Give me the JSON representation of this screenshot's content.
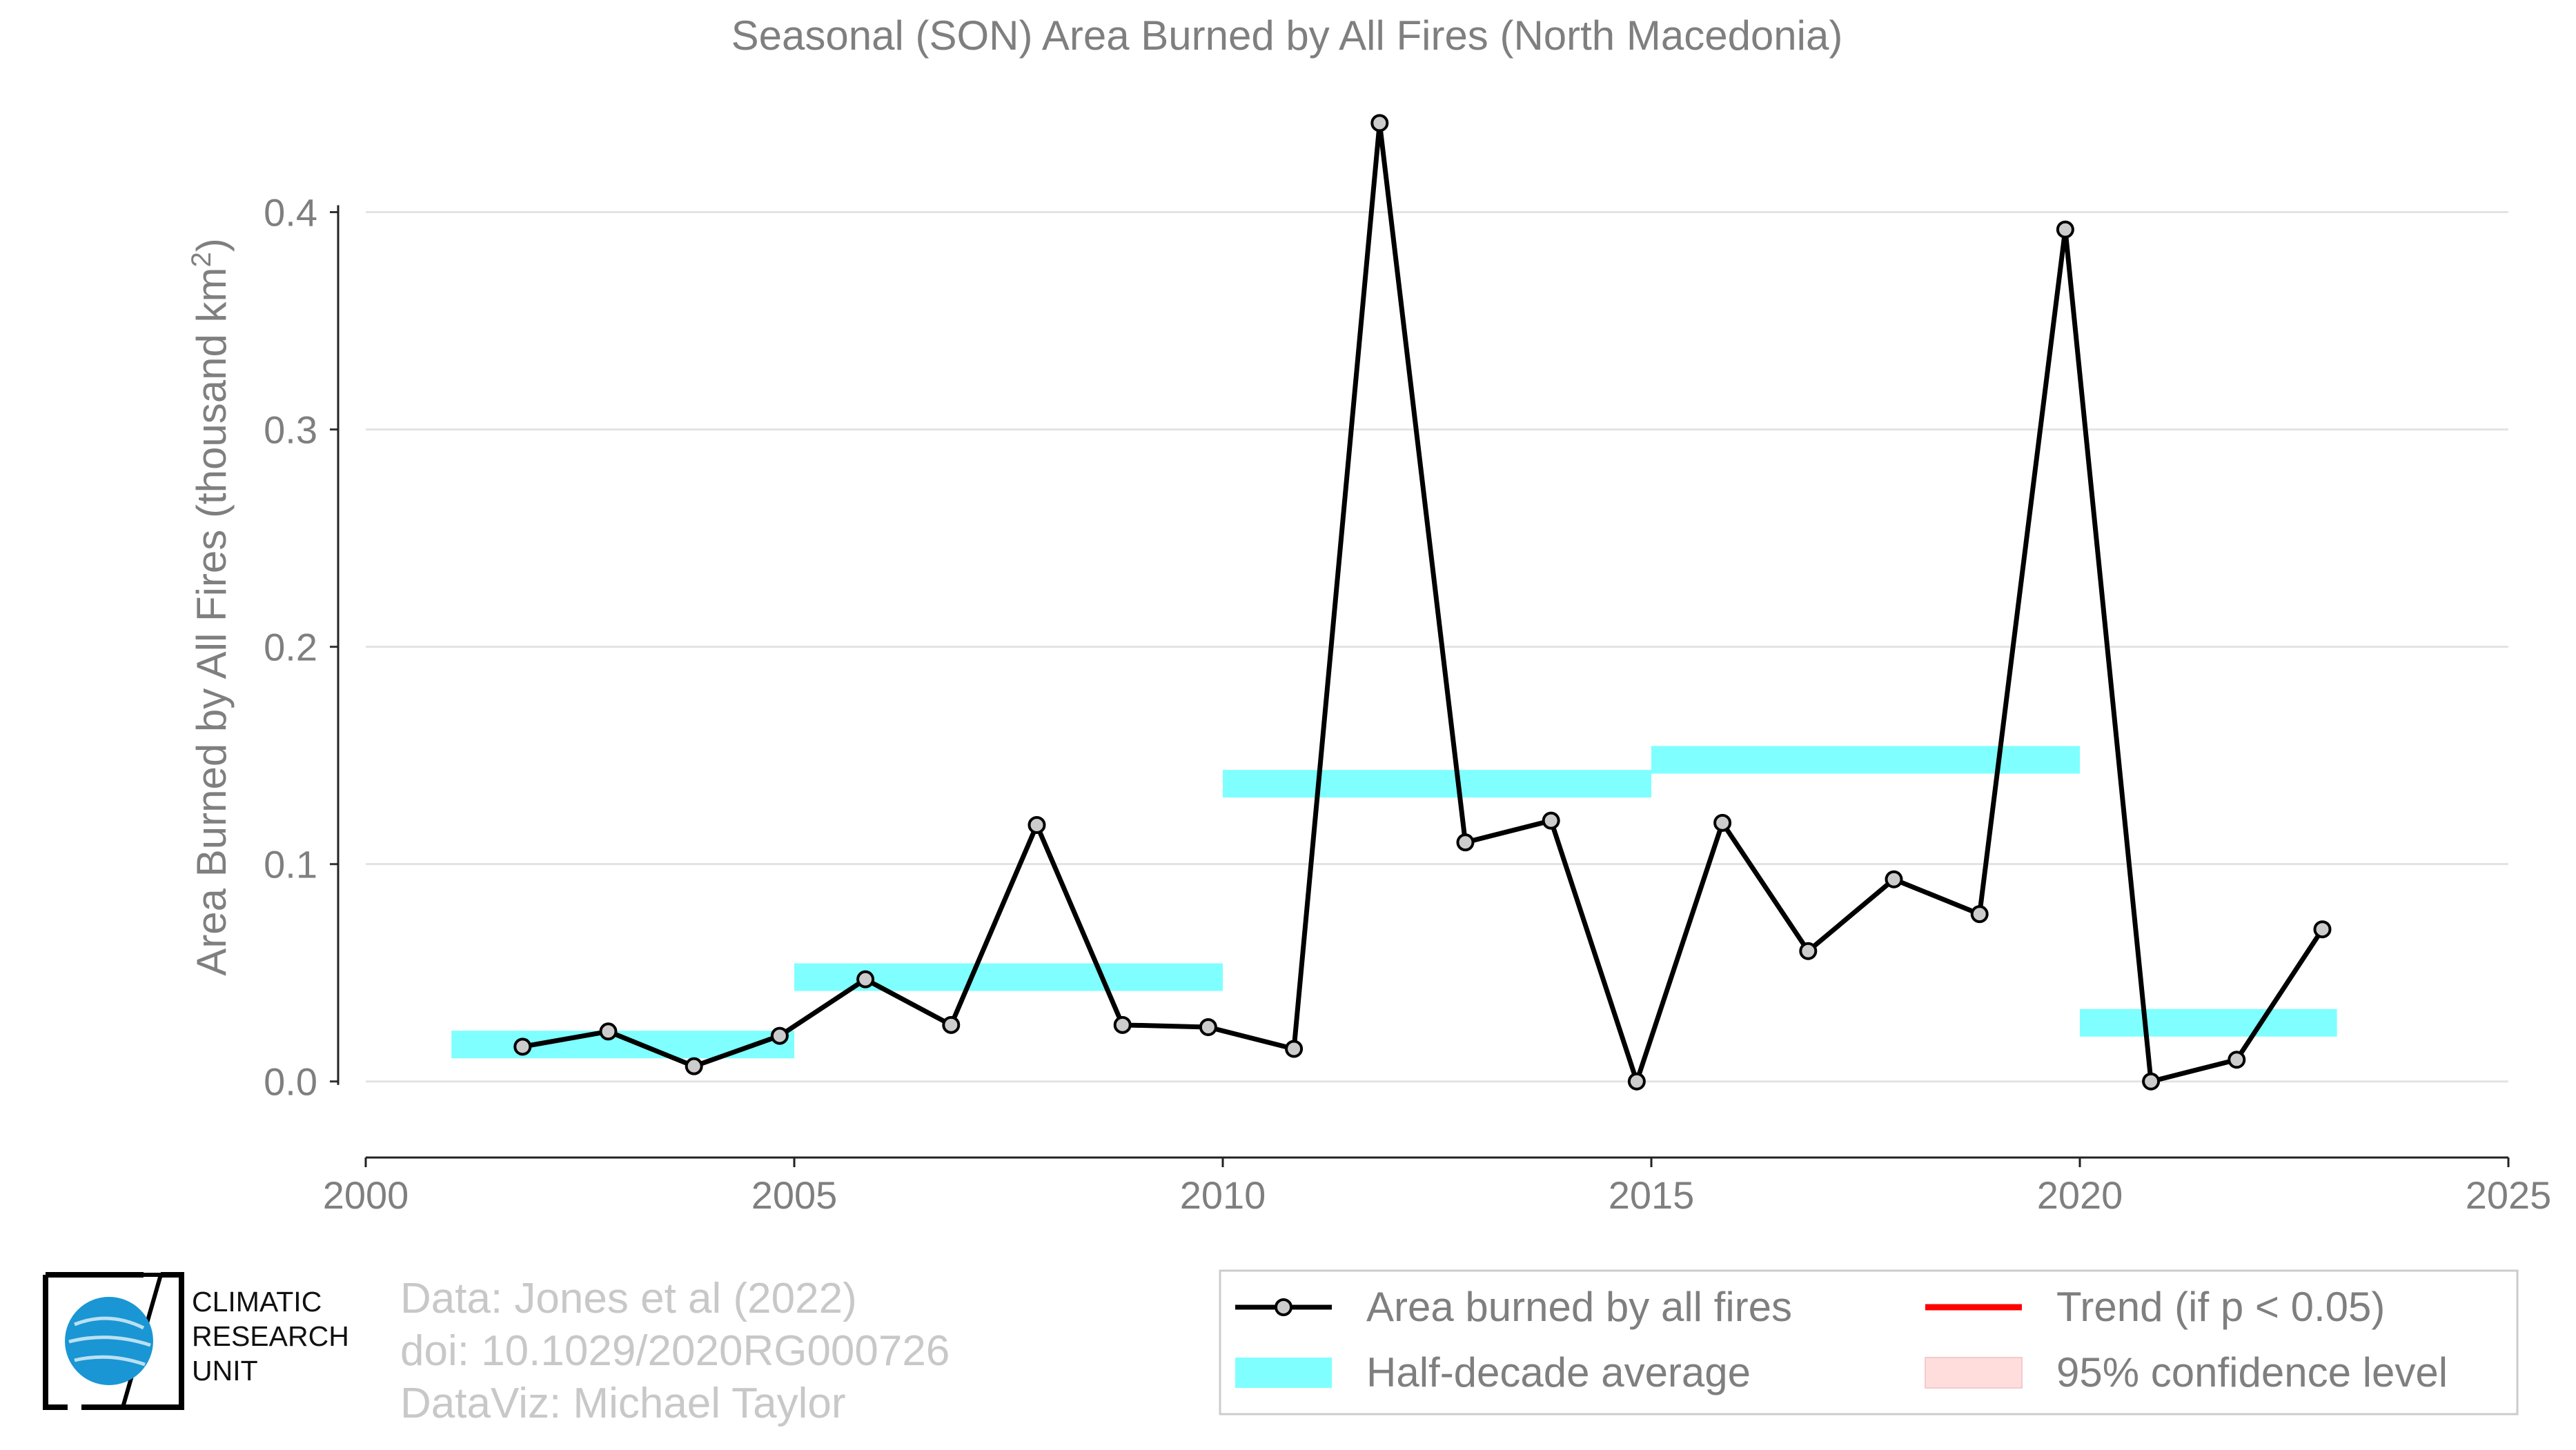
{
  "chart_data": {
    "type": "line",
    "title": "Seasonal (SON) Area Burned by All Fires (North Macedonia)",
    "ylabel": "Area Burned by All Fires (thousand km²)",
    "xlabel": "",
    "xlim": [
      2000,
      2025
    ],
    "ylim": [
      -0.035,
      0.45
    ],
    "xticks": [
      "2000",
      "2005",
      "2010",
      "2015",
      "2020",
      "2025"
    ],
    "yticks": [
      "0.0",
      "0.1",
      "0.2",
      "0.3",
      "0.4"
    ],
    "grid": "horizontal",
    "series": [
      {
        "name": "Area burned by all fires",
        "color": "#000000",
        "x": [
          2001.83,
          2002.83,
          2003.83,
          2004.83,
          2005.83,
          2006.83,
          2007.83,
          2008.83,
          2009.83,
          2010.83,
          2011.83,
          2012.83,
          2013.83,
          2014.83,
          2015.83,
          2016.83,
          2017.83,
          2018.83,
          2019.83,
          2020.83,
          2021.83,
          2022.83
        ],
        "y": [
          0.016,
          0.023,
          0.007,
          0.021,
          0.047,
          0.026,
          0.118,
          0.026,
          0.025,
          0.015,
          0.441,
          0.11,
          0.12,
          0.0,
          0.119,
          0.06,
          0.093,
          0.077,
          0.392,
          0.0,
          0.01,
          0.07
        ]
      }
    ],
    "half_decade_average": {
      "name": "Half-decade average",
      "color": "#7fffff",
      "segments": [
        {
          "x0": 2001,
          "x1": 2005,
          "y": 0.017
        },
        {
          "x0": 2005,
          "x1": 2010,
          "y": 0.048
        },
        {
          "x0": 2010,
          "x1": 2015,
          "y": 0.137
        },
        {
          "x0": 2015,
          "x1": 2020,
          "y": 0.148
        },
        {
          "x0": 2020,
          "x1": 2023,
          "y": 0.027
        }
      ]
    },
    "legend": {
      "placement": "bottom-right",
      "entries": [
        {
          "label": "Area burned by all fires",
          "kind": "line-marker",
          "color": "#000000"
        },
        {
          "label": "Trend (if p < 0.05)",
          "kind": "line",
          "color": "#ff0000"
        },
        {
          "label": "Half-decade average",
          "kind": "band",
          "color": "#7fffff"
        },
        {
          "label": "95% confidence level",
          "kind": "band",
          "color": "#ffdddd"
        }
      ]
    }
  },
  "credits": {
    "line1": "Data: Jones et al (2022)",
    "line2": "doi: 10.1029/2020RG000726",
    "line3": "DataViz: Michael Taylor"
  },
  "logo": {
    "line1": "CLIMATIC",
    "line2": "RESEARCH",
    "line3": "UNIT",
    "color": "#1a96d4"
  }
}
